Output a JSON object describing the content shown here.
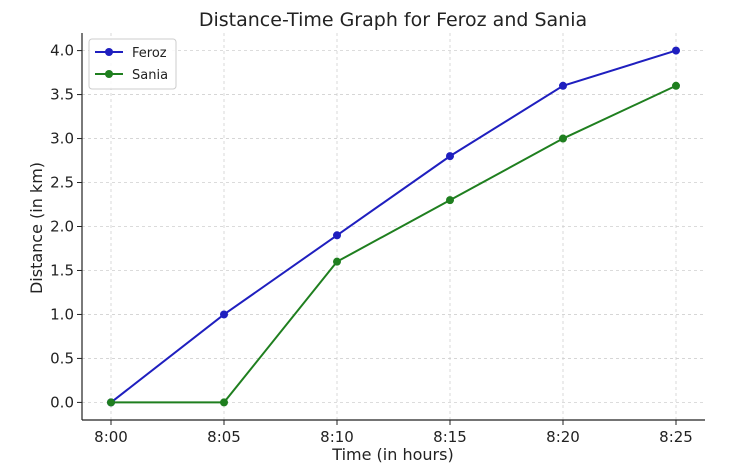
{
  "chart_data": {
    "type": "line",
    "title": "Distance-Time Graph for Feroz and Sania",
    "xlabel": "Time (in hours)",
    "ylabel": "Distance (in km)",
    "categories": [
      "8:00",
      "8:05",
      "8:10",
      "8:15",
      "8:20",
      "8:25"
    ],
    "ylim": [
      -0.2,
      4.2
    ],
    "yticks": [
      0.0,
      0.5,
      1.0,
      1.5,
      2.0,
      2.5,
      3.0,
      3.5,
      4.0
    ],
    "ytick_labels": [
      "0.0",
      "0.5",
      "1.0",
      "1.5",
      "2.0",
      "2.5",
      "3.0",
      "3.5",
      "4.0"
    ],
    "grid": true,
    "legend_position": "top-left",
    "series": [
      {
        "name": "Feroz",
        "color": "#1f1fbf",
        "values": [
          0,
          1.0,
          1.9,
          2.8,
          3.6,
          4.0
        ]
      },
      {
        "name": "Sania",
        "color": "#1f7f1f",
        "values": [
          0,
          0,
          1.6,
          2.3,
          3.0,
          3.6
        ]
      }
    ]
  }
}
